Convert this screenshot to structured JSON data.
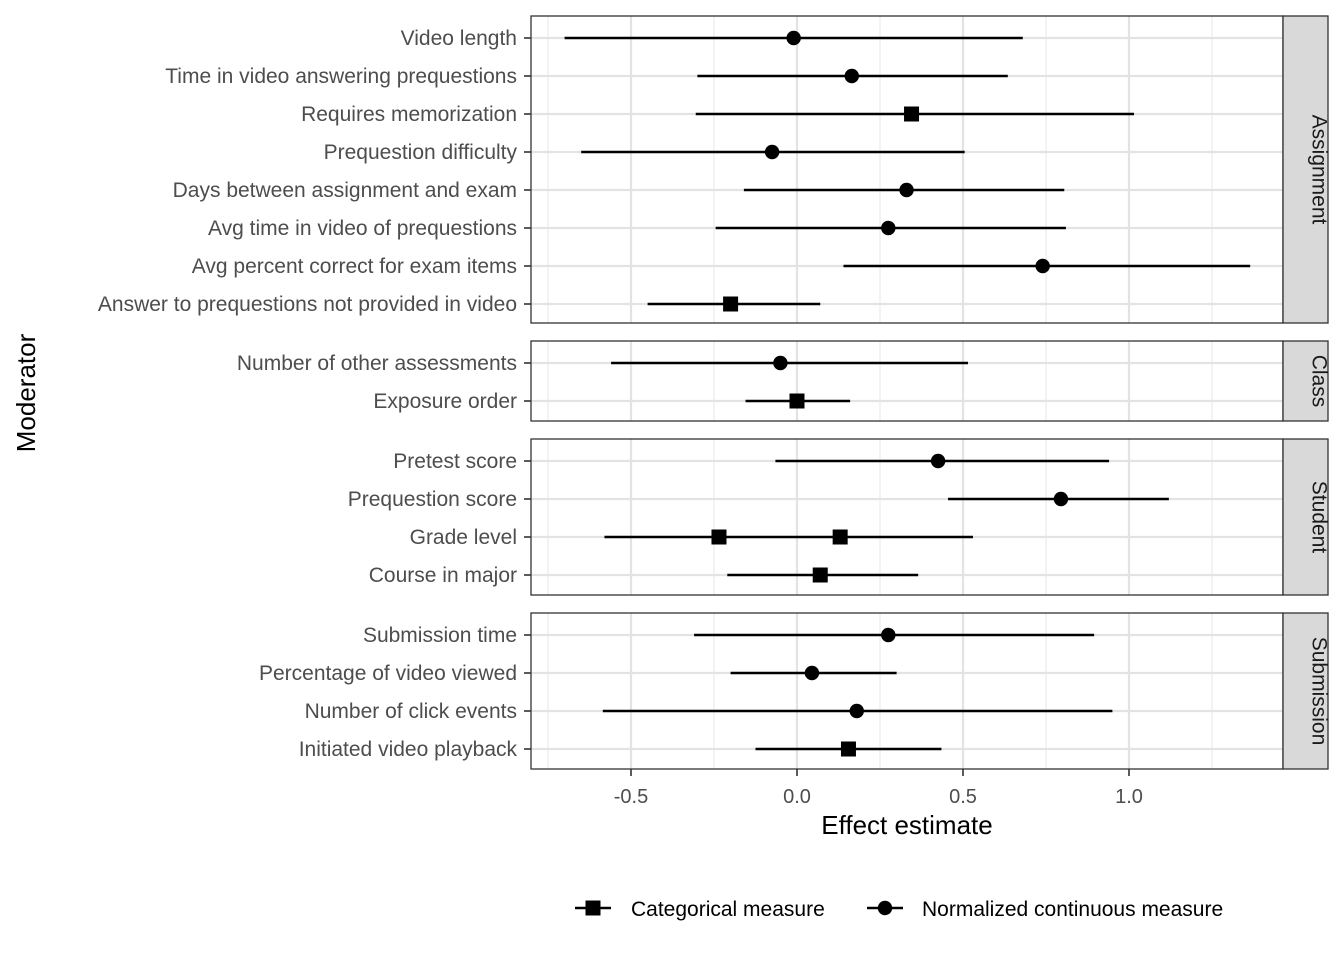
{
  "chart_data": {
    "type": "scatter",
    "subtype": "forest-plot-with-error-bars",
    "xlabel": "Effect estimate",
    "ylabel": "Moderator",
    "xlim": [
      -0.8,
      1.47
    ],
    "x_ticks": [
      -0.5,
      0.0,
      0.5,
      1.0
    ],
    "x_tick_labels": [
      "-0.5",
      "0.0",
      "0.5",
      "1.0"
    ],
    "grid": true,
    "legend": {
      "position": "bottom",
      "entries": [
        {
          "key": "categorical",
          "label": "Categorical measure",
          "shape": "square"
        },
        {
          "key": "continuous",
          "label": "Normalized continuous measure",
          "shape": "circle"
        }
      ]
    },
    "panels": [
      {
        "strip": "Assignment",
        "rows": [
          {
            "label": "Video length",
            "points": [
              {
                "type": "continuous",
                "estimate": -0.01,
                "lower": -0.7,
                "upper": 0.68
              }
            ]
          },
          {
            "label": "Time in video answering prequestions",
            "points": [
              {
                "type": "continuous",
                "estimate": 0.165,
                "lower": -0.3,
                "upper": 0.635
              }
            ]
          },
          {
            "label": "Requires memorization",
            "points": [
              {
                "type": "categorical",
                "estimate": 0.345,
                "lower": -0.305,
                "upper": 1.015
              }
            ]
          },
          {
            "label": "Prequestion difficulty",
            "points": [
              {
                "type": "continuous",
                "estimate": -0.075,
                "lower": -0.65,
                "upper": 0.505
              }
            ]
          },
          {
            "label": "Days between assignment and exam",
            "points": [
              {
                "type": "continuous",
                "estimate": 0.33,
                "lower": -0.16,
                "upper": 0.805
              }
            ]
          },
          {
            "label": "Avg time in video of prequestions",
            "points": [
              {
                "type": "continuous",
                "estimate": 0.275,
                "lower": -0.245,
                "upper": 0.81
              }
            ]
          },
          {
            "label": "Avg percent correct for exam items",
            "points": [
              {
                "type": "continuous",
                "estimate": 0.74,
                "lower": 0.14,
                "upper": 1.365
              }
            ]
          },
          {
            "label": "Answer to prequestions not provided in video",
            "points": [
              {
                "type": "categorical",
                "estimate": -0.2,
                "lower": -0.45,
                "upper": 0.07
              }
            ]
          }
        ]
      },
      {
        "strip": "Class",
        "rows": [
          {
            "label": "Number of other assessments",
            "points": [
              {
                "type": "continuous",
                "estimate": -0.05,
                "lower": -0.56,
                "upper": 0.515
              }
            ]
          },
          {
            "label": "Exposure order",
            "points": [
              {
                "type": "categorical",
                "estimate": 0.0,
                "lower": -0.155,
                "upper": 0.16
              }
            ]
          }
        ]
      },
      {
        "strip": "Student",
        "rows": [
          {
            "label": "Pretest score",
            "points": [
              {
                "type": "continuous",
                "estimate": 0.425,
                "lower": -0.065,
                "upper": 0.94
              }
            ]
          },
          {
            "label": "Prequestion score",
            "points": [
              {
                "type": "continuous",
                "estimate": 0.795,
                "lower": 0.455,
                "upper": 1.12
              }
            ]
          },
          {
            "label": "Grade level",
            "points": [
              {
                "type": "categorical",
                "estimate": -0.235,
                "lower": -0.58,
                "upper": 0.53
              },
              {
                "type": "categorical",
                "estimate": 0.13,
                "lower": -0.58,
                "upper": 0.53
              }
            ]
          },
          {
            "label": "Course in major",
            "points": [
              {
                "type": "categorical",
                "estimate": 0.07,
                "lower": -0.21,
                "upper": 0.365
              }
            ]
          }
        ]
      },
      {
        "strip": "Submission",
        "rows": [
          {
            "label": "Submission time",
            "points": [
              {
                "type": "continuous",
                "estimate": 0.275,
                "lower": -0.31,
                "upper": 0.895
              }
            ]
          },
          {
            "label": "Percentage of video viewed",
            "points": [
              {
                "type": "continuous",
                "estimate": 0.045,
                "lower": -0.2,
                "upper": 0.3
              }
            ]
          },
          {
            "label": "Number of click events",
            "points": [
              {
                "type": "continuous",
                "estimate": 0.18,
                "lower": -0.585,
                "upper": 0.95
              }
            ]
          },
          {
            "label": "Initiated video playback",
            "points": [
              {
                "type": "categorical",
                "estimate": 0.155,
                "lower": -0.125,
                "upper": 0.435
              }
            ]
          }
        ]
      }
    ]
  }
}
